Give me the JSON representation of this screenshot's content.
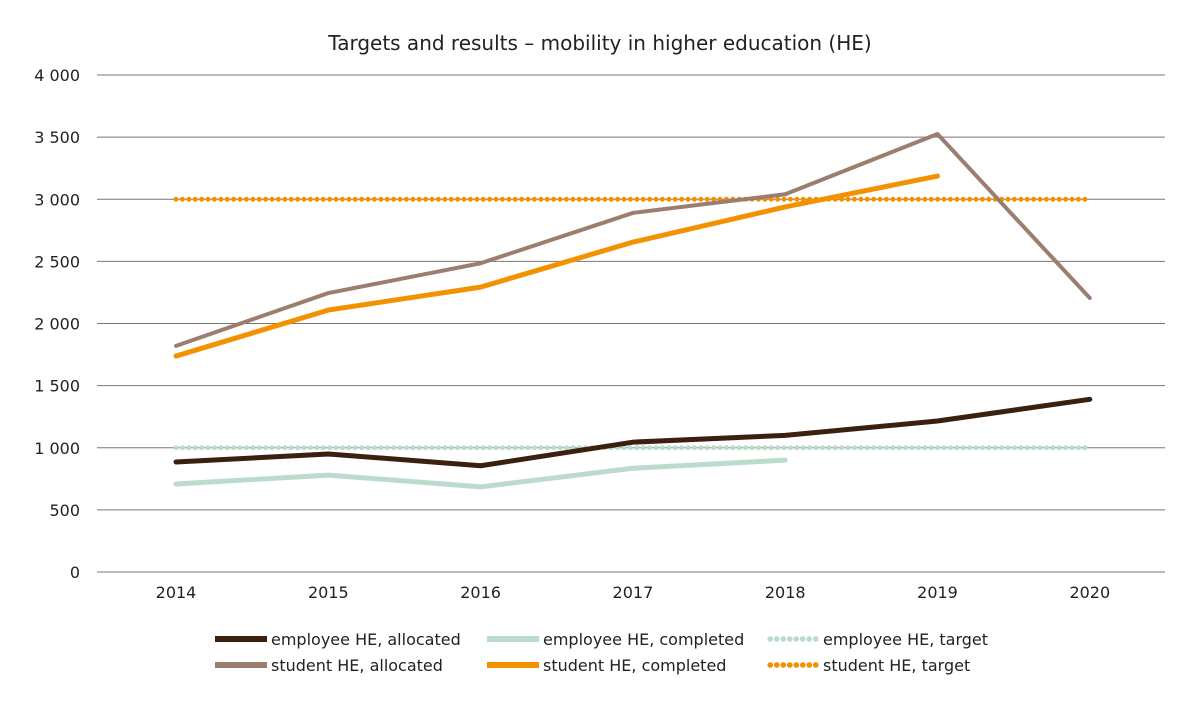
{
  "chart_data": {
    "type": "line",
    "title": "Targets and results – mobility in higher education (HE)",
    "xlabel": "",
    "ylabel": "",
    "categories": [
      "2014",
      "2015",
      "2016",
      "2017",
      "2018",
      "2019",
      "2020"
    ],
    "ylim": [
      0,
      4000
    ],
    "yticks": [
      0,
      500,
      1000,
      1500,
      2000,
      2500,
      3000,
      3500,
      4000
    ],
    "ytick_labels": [
      "0",
      "500",
      "1 000",
      "1 500",
      "2 000",
      "2 500",
      "3 000",
      "3 500",
      "4 000"
    ],
    "grid": true,
    "legend_position": "bottom",
    "series": [
      {
        "name": "employee HE, allocated",
        "color": "#3b1f0f",
        "style": "solid",
        "values": [
          885,
          950,
          855,
          1045,
          1100,
          1215,
          1390
        ]
      },
      {
        "name": "employee HE, completed",
        "color": "#bcdccb",
        "style": "solid",
        "values": [
          708,
          780,
          685,
          835,
          900,
          null,
          null
        ]
      },
      {
        "name": "employee HE, target",
        "color": "#bcdccb",
        "style": "dotted",
        "values": [
          1000,
          1000,
          1000,
          1000,
          1000,
          1000,
          1000
        ]
      },
      {
        "name": "student HE, allocated",
        "color": "#9b7e70",
        "style": "solid",
        "values": [
          1820,
          2245,
          2485,
          2890,
          3040,
          3525,
          2205
        ]
      },
      {
        "name": "student HE, completed",
        "color": "#f39200",
        "style": "solid",
        "values": [
          1738,
          2108,
          2293,
          2655,
          2938,
          3187,
          null
        ]
      },
      {
        "name": "student HE, target",
        "color": "#f39200",
        "style": "dotted",
        "values": [
          3000,
          3000,
          3000,
          3000,
          3000,
          3000,
          3000
        ]
      }
    ]
  }
}
